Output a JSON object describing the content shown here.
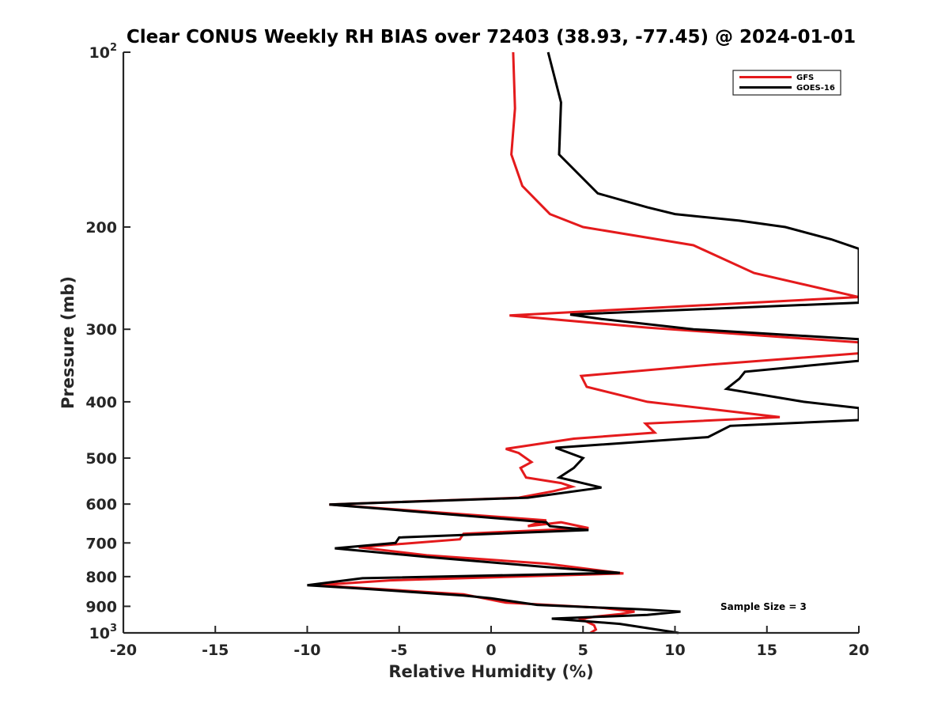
{
  "chart_data": {
    "type": "line",
    "title": "Clear CONUS Weekly RH BIAS over 72403 (38.93, -77.45) @ 2024-01-01",
    "xlabel": "Relative Humidity (%)",
    "ylabel": "Pressure (mb)",
    "xlim": [
      -20,
      20
    ],
    "ylim": [
      1000,
      100
    ],
    "yscale": "log",
    "y_reversed": true,
    "grid": false,
    "legend_position": "top-right",
    "x_ticks": [
      "-20",
      "-15",
      "-10",
      "-5",
      "0",
      "5",
      "10",
      "15",
      "20"
    ],
    "y_ticks": [
      {
        "value": 100,
        "base": "10",
        "exp": "2"
      },
      {
        "value": 200,
        "label": "200"
      },
      {
        "value": 300,
        "label": "300"
      },
      {
        "value": 400,
        "label": "400"
      },
      {
        "value": 500,
        "label": "500"
      },
      {
        "value": 600,
        "label": "600"
      },
      {
        "value": 700,
        "label": "700"
      },
      {
        "value": 800,
        "label": "800"
      },
      {
        "value": 900,
        "label": "900"
      },
      {
        "value": 1000,
        "base": "10",
        "exp": "3"
      }
    ],
    "series": [
      {
        "name": "GFS",
        "color": "#e41a1c",
        "points": [
          [
            1.2,
            100
          ],
          [
            1.3,
            125
          ],
          [
            1.1,
            150
          ],
          [
            1.7,
            170
          ],
          [
            3.2,
            190
          ],
          [
            5.0,
            200
          ],
          [
            11.0,
            215
          ],
          [
            14.3,
            240
          ],
          [
            20.0,
            264
          ],
          [
            1.0,
            284
          ],
          [
            8.5,
            298
          ],
          [
            20.0,
            316
          ],
          [
            20.0,
            330
          ],
          [
            12.0,
            345
          ],
          [
            4.9,
            361
          ],
          [
            5.2,
            377
          ],
          [
            8.5,
            400
          ],
          [
            15.7,
            425
          ],
          [
            8.4,
            436
          ],
          [
            8.9,
            452
          ],
          [
            4.5,
            463
          ],
          [
            0.8,
            482
          ],
          [
            1.5,
            490
          ],
          [
            2.2,
            508
          ],
          [
            1.6,
            520
          ],
          [
            1.9,
            540
          ],
          [
            3.8,
            552
          ],
          [
            4.4,
            560
          ],
          [
            3.4,
            570
          ],
          [
            1.5,
            585
          ],
          [
            -8.8,
            601
          ],
          [
            3.0,
            640
          ],
          [
            2.0,
            655
          ],
          [
            3.8,
            645
          ],
          [
            5.3,
            660
          ],
          [
            -1.5,
            675
          ],
          [
            -1.7,
            690
          ],
          [
            -7.2,
            712
          ],
          [
            -3.5,
            735
          ],
          [
            3.0,
            760
          ],
          [
            7.2,
            790
          ],
          [
            -5.5,
            812
          ],
          [
            -9.5,
            828
          ],
          [
            -6.2,
            840
          ],
          [
            -1.5,
            858
          ],
          [
            0.8,
            887
          ],
          [
            6.0,
            905
          ],
          [
            7.8,
            919
          ],
          [
            7.0,
            928
          ],
          [
            5.6,
            938
          ],
          [
            4.9,
            947
          ],
          [
            5.6,
            970
          ],
          [
            5.7,
            987
          ],
          [
            5.4,
            1000
          ]
        ]
      },
      {
        "name": "GOES-16",
        "color": "#000000",
        "points": [
          [
            3.1,
            100
          ],
          [
            3.8,
            122
          ],
          [
            3.7,
            150
          ],
          [
            5.8,
            175
          ],
          [
            8.5,
            185
          ],
          [
            10.0,
            190
          ],
          [
            13.5,
            195
          ],
          [
            16.0,
            200
          ],
          [
            18.5,
            210
          ],
          [
            20.0,
            218
          ],
          [
            20.0,
            270
          ],
          [
            4.3,
            283
          ],
          [
            6.0,
            288
          ],
          [
            11.0,
            300
          ],
          [
            20.0,
            312
          ],
          [
            20.0,
            340
          ],
          [
            13.8,
            355
          ],
          [
            13.5,
            365
          ],
          [
            12.8,
            380
          ],
          [
            17.0,
            400
          ],
          [
            20.0,
            410
          ],
          [
            20.0,
            430
          ],
          [
            13.0,
            440
          ],
          [
            11.8,
            460
          ],
          [
            3.5,
            480
          ],
          [
            5.0,
            500
          ],
          [
            4.5,
            520
          ],
          [
            3.7,
            540
          ],
          [
            6.0,
            562
          ],
          [
            2.0,
            585
          ],
          [
            -8.8,
            601
          ],
          [
            3.0,
            645
          ],
          [
            3.2,
            655
          ],
          [
            5.3,
            665
          ],
          [
            -5.0,
            685
          ],
          [
            -5.2,
            700
          ],
          [
            -8.5,
            715
          ],
          [
            -3.5,
            740
          ],
          [
            3.0,
            770
          ],
          [
            7.0,
            788
          ],
          [
            -7.0,
            805
          ],
          [
            -10.0,
            828
          ],
          [
            -6.8,
            840
          ],
          [
            -1.5,
            862
          ],
          [
            0.0,
            872
          ],
          [
            2.5,
            895
          ],
          [
            8.2,
            911
          ],
          [
            10.3,
            919
          ],
          [
            8.5,
            931
          ],
          [
            3.3,
            945
          ],
          [
            7.0,
            965
          ],
          [
            10.2,
            1000
          ]
        ]
      }
    ],
    "annotation": "Sample Size = 3"
  }
}
